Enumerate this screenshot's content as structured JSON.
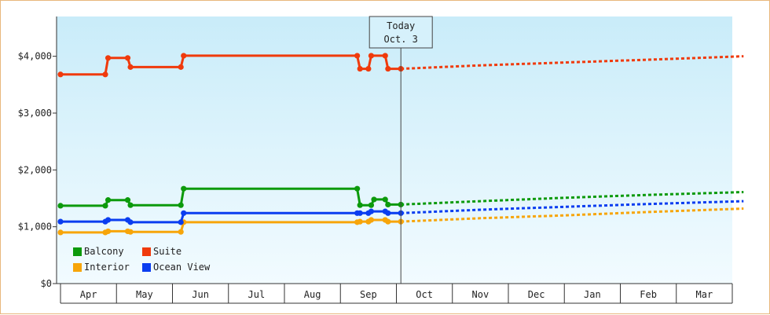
{
  "chart_data": {
    "type": "line",
    "yticks": [
      "$0",
      "$1,000",
      "$2,000",
      "$3,000",
      "$4,000"
    ],
    "ylim": [
      0,
      4700
    ],
    "months": [
      "Apr",
      "May",
      "Jun",
      "Jul",
      "Aug",
      "Sep",
      "Oct",
      "Nov",
      "Dec",
      "Jan",
      "Feb",
      "Mar"
    ],
    "today": {
      "line1": "Today",
      "line2": "Oct. 3",
      "x": 6.08
    },
    "x_unit": "months since start of Apr (x axis runs Apr to end of Mar)",
    "grid": false,
    "legend_position": "bottom-left",
    "series": [
      {
        "name": "Balcony",
        "color": "#0c9a0c",
        "history": [
          [
            0,
            1370
          ],
          [
            0.8,
            1370
          ],
          [
            0.85,
            1470
          ],
          [
            1.2,
            1470
          ],
          [
            1.25,
            1380
          ],
          [
            2.15,
            1380
          ],
          [
            2.2,
            1670
          ],
          [
            5.3,
            1670
          ],
          [
            5.35,
            1380
          ],
          [
            5.55,
            1380
          ],
          [
            5.6,
            1480
          ],
          [
            5.8,
            1480
          ],
          [
            5.85,
            1390
          ],
          [
            6.08,
            1390
          ]
        ],
        "forecast": [
          [
            6.08,
            1390
          ],
          [
            7.5,
            1450
          ],
          [
            9,
            1510
          ],
          [
            10.5,
            1560
          ],
          [
            12.2,
            1610
          ]
        ]
      },
      {
        "name": "Suite",
        "color": "#f03a0c",
        "history": [
          [
            0,
            3680
          ],
          [
            0.8,
            3680
          ],
          [
            0.85,
            3970
          ],
          [
            1.2,
            3970
          ],
          [
            1.25,
            3810
          ],
          [
            2.15,
            3810
          ],
          [
            2.2,
            4010
          ],
          [
            5.3,
            4010
          ],
          [
            5.35,
            3780
          ],
          [
            5.5,
            3780
          ],
          [
            5.55,
            4010
          ],
          [
            5.8,
            4010
          ],
          [
            5.85,
            3780
          ],
          [
            6.08,
            3780
          ]
        ],
        "forecast": [
          [
            6.08,
            3780
          ],
          [
            7.5,
            3840
          ],
          [
            9,
            3890
          ],
          [
            10.5,
            3940
          ],
          [
            12.2,
            4000
          ]
        ]
      },
      {
        "name": "Interior",
        "color": "#f7a50a",
        "history": [
          [
            0,
            900
          ],
          [
            0.8,
            900
          ],
          [
            0.85,
            920
          ],
          [
            1.2,
            920
          ],
          [
            1.25,
            910
          ],
          [
            2.15,
            910
          ],
          [
            2.2,
            1080
          ],
          [
            5.3,
            1080
          ],
          [
            5.35,
            1090
          ],
          [
            5.5,
            1090
          ],
          [
            5.55,
            1120
          ],
          [
            5.8,
            1120
          ],
          [
            5.85,
            1090
          ],
          [
            6.08,
            1090
          ]
        ],
        "forecast": [
          [
            6.08,
            1090
          ],
          [
            7.5,
            1150
          ],
          [
            9,
            1200
          ],
          [
            10.5,
            1260
          ],
          [
            12.2,
            1320
          ]
        ]
      },
      {
        "name": "Ocean View",
        "color": "#0a3df0",
        "history": [
          [
            0,
            1090
          ],
          [
            0.8,
            1090
          ],
          [
            0.85,
            1120
          ],
          [
            1.2,
            1120
          ],
          [
            1.25,
            1080
          ],
          [
            2.15,
            1080
          ],
          [
            2.2,
            1240
          ],
          [
            5.3,
            1240
          ],
          [
            5.35,
            1240
          ],
          [
            5.5,
            1240
          ],
          [
            5.55,
            1270
          ],
          [
            5.8,
            1270
          ],
          [
            5.85,
            1240
          ],
          [
            6.08,
            1240
          ]
        ],
        "forecast": [
          [
            6.08,
            1240
          ],
          [
            7.5,
            1300
          ],
          [
            9,
            1350
          ],
          [
            10.5,
            1400
          ],
          [
            12.2,
            1450
          ]
        ]
      }
    ]
  }
}
